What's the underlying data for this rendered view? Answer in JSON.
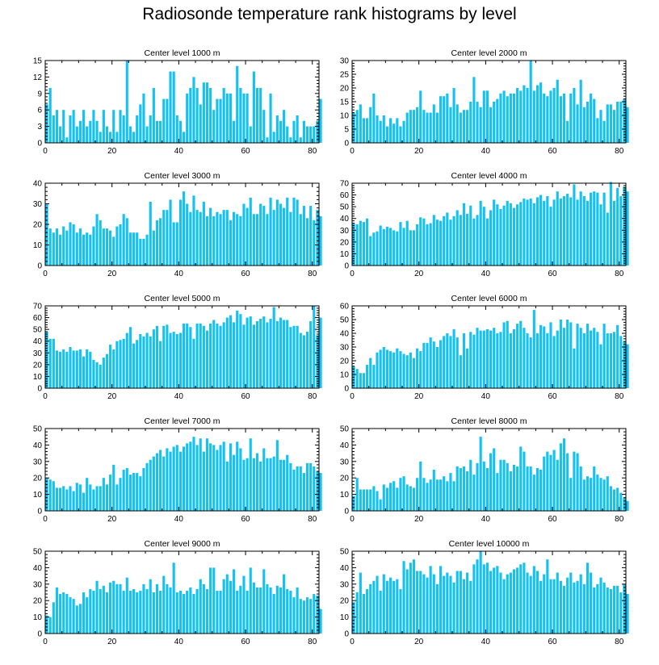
{
  "title": "Radiosonde temperature rank histograms by level",
  "colors": {
    "bar": "#13c1f3",
    "axis": "#000000",
    "background": "#ffffff"
  },
  "chart_data": [
    {
      "type": "bar",
      "title": "Center level 1000 m",
      "xlabel": "",
      "ylabel": "",
      "xlim": [
        0,
        82
      ],
      "ylim": [
        0,
        15
      ],
      "x_ticks": [
        0,
        20,
        40,
        60,
        80
      ],
      "y_ticks": [
        0,
        3,
        6,
        9,
        12,
        15
      ],
      "values": [
        7,
        10,
        5,
        6,
        3,
        6,
        1,
        5,
        6,
        3,
        4,
        6,
        3,
        4,
        6,
        4,
        2,
        6,
        3,
        2,
        6,
        2,
        6,
        5,
        15,
        3,
        2,
        5,
        7,
        9,
        3,
        5,
        10,
        4,
        4,
        8,
        8,
        13,
        13,
        5,
        4,
        2,
        9,
        10,
        12,
        10,
        7,
        11,
        11,
        10,
        6,
        8,
        8,
        10,
        9,
        9,
        4,
        14,
        10,
        9,
        9,
        3,
        13,
        10,
        10,
        6,
        1,
        9,
        2,
        5,
        4,
        6,
        3,
        1,
        4,
        5,
        1,
        4,
        3,
        3,
        3,
        4,
        8
      ],
      "x_start": 0
    },
    {
      "type": "bar",
      "title": "Center level 2000 m",
      "xlabel": "",
      "ylabel": "",
      "xlim": [
        0,
        82
      ],
      "ylim": [
        0,
        30
      ],
      "x_ticks": [
        0,
        20,
        40,
        60,
        80
      ],
      "y_ticks": [
        0,
        5,
        10,
        15,
        20,
        25,
        30
      ],
      "values": [
        11,
        12,
        14,
        9,
        9,
        13,
        18,
        10,
        8,
        10,
        6,
        9,
        7,
        9,
        6,
        8,
        11,
        12,
        12,
        13,
        19,
        12,
        11,
        11,
        14,
        11,
        17,
        17,
        18,
        13,
        20,
        14,
        11,
        12,
        12,
        15,
        24,
        15,
        13,
        19,
        19,
        13,
        15,
        16,
        18,
        19,
        17,
        18,
        18,
        20,
        19,
        21,
        20,
        30,
        19,
        21,
        22,
        18,
        17,
        19,
        20,
        23,
        17,
        18,
        8,
        18,
        20,
        14,
        23,
        13,
        15,
        18,
        16,
        9,
        12,
        8,
        14,
        14,
        12,
        15,
        15,
        16,
        13
      ],
      "x_start": 0
    },
    {
      "type": "bar",
      "title": "Center level 3000 m",
      "xlabel": "",
      "ylabel": "",
      "xlim": [
        0,
        82
      ],
      "ylim": [
        0,
        40
      ],
      "x_ticks": [
        0,
        20,
        40,
        60,
        80
      ],
      "y_ticks": [
        0,
        10,
        20,
        30,
        40
      ],
      "values": [
        30,
        18,
        16,
        18,
        15,
        19,
        17,
        21,
        20,
        16,
        18,
        15,
        16,
        15,
        19,
        25,
        22,
        18,
        18,
        17,
        14,
        19,
        20,
        25,
        23,
        16,
        16,
        16,
        13,
        13,
        15,
        31,
        17,
        22,
        23,
        27,
        27,
        32,
        21,
        21,
        32,
        36,
        30,
        26,
        34,
        27,
        26,
        31,
        24,
        28,
        24,
        26,
        25,
        27,
        27,
        22,
        26,
        25,
        24,
        30,
        28,
        33,
        25,
        25,
        30,
        29,
        25,
        33,
        27,
        32,
        30,
        28,
        33,
        26,
        33,
        32,
        25,
        29,
        23,
        29,
        22,
        27,
        24
      ],
      "x_start": 0
    },
    {
      "type": "bar",
      "title": "Center level 4000 m",
      "xlabel": "",
      "ylabel": "",
      "xlim": [
        0,
        82
      ],
      "ylim": [
        0,
        70
      ],
      "x_ticks": [
        0,
        20,
        40,
        60,
        80
      ],
      "y_ticks": [
        0,
        10,
        20,
        30,
        40,
        50,
        60,
        70
      ],
      "values": [
        36,
        35,
        38,
        37,
        40,
        25,
        28,
        29,
        34,
        31,
        33,
        32,
        30,
        29,
        37,
        32,
        38,
        30,
        30,
        35,
        41,
        40,
        35,
        36,
        43,
        39,
        38,
        42,
        45,
        39,
        42,
        47,
        43,
        53,
        44,
        51,
        40,
        43,
        55,
        50,
        40,
        47,
        56,
        52,
        48,
        51,
        55,
        53,
        49,
        52,
        54,
        57,
        56,
        57,
        53,
        58,
        60,
        55,
        59,
        50,
        56,
        63,
        57,
        59,
        61,
        58,
        69,
        56,
        63,
        59,
        55,
        62,
        63,
        62,
        52,
        62,
        45,
        71,
        55,
        66,
        59,
        67,
        63
      ],
      "x_start": 0
    },
    {
      "type": "bar",
      "title": "Center level 5000 m",
      "xlabel": "",
      "ylabel": "",
      "xlim": [
        0,
        82
      ],
      "ylim": [
        0,
        70
      ],
      "x_ticks": [
        0,
        20,
        40,
        60,
        80
      ],
      "y_ticks": [
        0,
        10,
        20,
        30,
        40,
        50,
        60,
        70
      ],
      "values": [
        48,
        42,
        42,
        32,
        31,
        33,
        31,
        35,
        32,
        32,
        33,
        27,
        33,
        31,
        24,
        22,
        20,
        26,
        29,
        37,
        33,
        40,
        41,
        42,
        47,
        52,
        38,
        41,
        46,
        44,
        47,
        44,
        50,
        53,
        40,
        53,
        54,
        47,
        48,
        46,
        47,
        55,
        55,
        52,
        42,
        55,
        55,
        53,
        49,
        55,
        58,
        55,
        53,
        56,
        60,
        62,
        56,
        66,
        63,
        54,
        60,
        61,
        54,
        57,
        59,
        61,
        56,
        59,
        69,
        57,
        60,
        58,
        58,
        52,
        53,
        53,
        47,
        45,
        48,
        57,
        70,
        45,
        60
      ],
      "x_start": 0
    },
    {
      "type": "bar",
      "title": "Center level 6000 m",
      "xlabel": "",
      "ylabel": "",
      "xlim": [
        0,
        82
      ],
      "ylim": [
        0,
        60
      ],
      "x_ticks": [
        0,
        20,
        40,
        60,
        80
      ],
      "y_ticks": [
        0,
        10,
        20,
        30,
        40,
        50,
        60
      ],
      "values": [
        16,
        14,
        11,
        11,
        17,
        22,
        17,
        26,
        28,
        30,
        28,
        27,
        26,
        29,
        27,
        25,
        24,
        26,
        22,
        29,
        27,
        33,
        33,
        37,
        34,
        30,
        35,
        38,
        40,
        38,
        43,
        37,
        24,
        40,
        29,
        41,
        39,
        44,
        42,
        42,
        43,
        42,
        44,
        40,
        41,
        48,
        49,
        40,
        43,
        47,
        49,
        44,
        40,
        37,
        57,
        40,
        46,
        45,
        40,
        48,
        38,
        42,
        50,
        44,
        50,
        48,
        29,
        47,
        44,
        40,
        47,
        42,
        44,
        41,
        32,
        47,
        40,
        40,
        41,
        46,
        38,
        34,
        32
      ],
      "x_start": 0
    },
    {
      "type": "bar",
      "title": "Center level 7000 m",
      "xlabel": "",
      "ylabel": "",
      "xlim": [
        0,
        82
      ],
      "ylim": [
        0,
        50
      ],
      "x_ticks": [
        0,
        20,
        40,
        60,
        80
      ],
      "y_ticks": [
        0,
        10,
        20,
        30,
        40,
        50
      ],
      "values": [
        20,
        19,
        18,
        14,
        14,
        15,
        13,
        15,
        12,
        17,
        16,
        11,
        20,
        16,
        13,
        15,
        15,
        20,
        16,
        22,
        28,
        16,
        20,
        25,
        26,
        22,
        23,
        23,
        21,
        26,
        29,
        31,
        33,
        35,
        37,
        33,
        38,
        36,
        39,
        40,
        36,
        39,
        41,
        42,
        45,
        40,
        44,
        36,
        44,
        41,
        40,
        37,
        40,
        42,
        30,
        41,
        34,
        42,
        38,
        31,
        32,
        44,
        32,
        35,
        30,
        38,
        32,
        32,
        33,
        43,
        31,
        31,
        34,
        29,
        25,
        27,
        27,
        23,
        29,
        29,
        27,
        24,
        23
      ],
      "x_start": 0
    },
    {
      "type": "bar",
      "title": "Center level 8000 m",
      "xlabel": "",
      "ylabel": "",
      "xlim": [
        0,
        82
      ],
      "ylim": [
        0,
        50
      ],
      "x_ticks": [
        0,
        20,
        40,
        60,
        80
      ],
      "y_ticks": [
        0,
        10,
        20,
        30,
        40,
        50
      ],
      "values": [
        9,
        20,
        13,
        13,
        13,
        13,
        15,
        12,
        7,
        16,
        14,
        17,
        18,
        14,
        20,
        21,
        16,
        15,
        14,
        20,
        30,
        20,
        17,
        19,
        25,
        19,
        19,
        21,
        18,
        23,
        18,
        27,
        26,
        27,
        24,
        31,
        22,
        29,
        45,
        30,
        26,
        35,
        38,
        23,
        31,
        31,
        29,
        24,
        28,
        27,
        39,
        36,
        27,
        27,
        22,
        26,
        25,
        33,
        36,
        34,
        37,
        31,
        41,
        44,
        35,
        20,
        36,
        35,
        27,
        19,
        21,
        20,
        27,
        22,
        20,
        19,
        21,
        15,
        13,
        14,
        11,
        8,
        6
      ],
      "x_start": 0
    },
    {
      "type": "bar",
      "title": "Center level 9000 m",
      "xlabel": "",
      "ylabel": "",
      "xlim": [
        0,
        82
      ],
      "ylim": [
        0,
        50
      ],
      "x_ticks": [
        0,
        20,
        40,
        60,
        80
      ],
      "y_ticks": [
        0,
        10,
        20,
        30,
        40,
        50
      ],
      "values": [
        11,
        10,
        19,
        28,
        24,
        25,
        24,
        22,
        21,
        17,
        18,
        25,
        22,
        27,
        26,
        32,
        27,
        29,
        25,
        31,
        32,
        30,
        30,
        26,
        34,
        26,
        27,
        25,
        26,
        30,
        27,
        33,
        25,
        30,
        26,
        35,
        30,
        28,
        43,
        25,
        26,
        24,
        26,
        28,
        24,
        27,
        33,
        30,
        27,
        40,
        40,
        26,
        26,
        33,
        36,
        32,
        39,
        26,
        29,
        35,
        26,
        40,
        31,
        28,
        28,
        39,
        30,
        28,
        24,
        29,
        28,
        36,
        27,
        26,
        22,
        28,
        21,
        20,
        22,
        21,
        24,
        23,
        15
      ],
      "x_start": 0
    },
    {
      "type": "bar",
      "title": "Center level 10000 m",
      "xlabel": "",
      "ylabel": "",
      "xlim": [
        0,
        82
      ],
      "ylim": [
        0,
        50
      ],
      "x_ticks": [
        0,
        20,
        40,
        60,
        80
      ],
      "y_ticks": [
        0,
        10,
        20,
        30,
        40,
        50
      ],
      "values": [
        19,
        25,
        37,
        24,
        27,
        30,
        32,
        35,
        26,
        36,
        32,
        34,
        32,
        33,
        27,
        44,
        39,
        43,
        45,
        38,
        38,
        36,
        34,
        41,
        36,
        30,
        41,
        35,
        37,
        35,
        31,
        38,
        38,
        33,
        37,
        32,
        42,
        45,
        50,
        42,
        43,
        38,
        40,
        41,
        37,
        33,
        36,
        37,
        39,
        40,
        42,
        43,
        37,
        35,
        41,
        38,
        32,
        36,
        45,
        33,
        33,
        37,
        32,
        29,
        34,
        37,
        31,
        32,
        36,
        30,
        43,
        37,
        28,
        30,
        34,
        31,
        28,
        27,
        29,
        29,
        25,
        30,
        24
      ],
      "x_start": 0
    }
  ]
}
